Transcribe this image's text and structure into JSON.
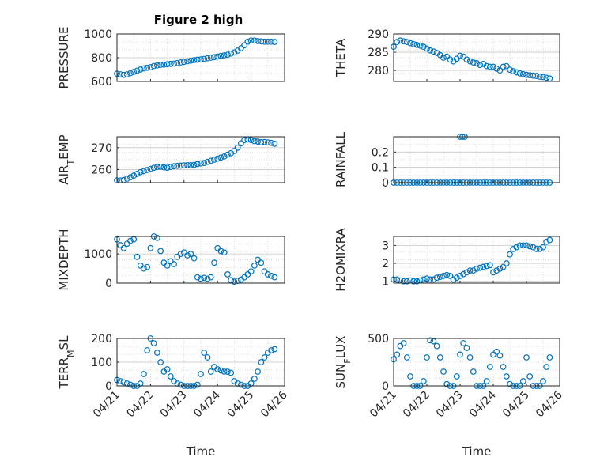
{
  "figure": {
    "title": "Figure 2 high",
    "accent": "#0072BD"
  },
  "chart_data": [
    {
      "type": "scatter",
      "ylabel": "PRESSURE",
      "ylim": [
        600,
        1000
      ],
      "yticks": [
        600,
        800,
        1000
      ],
      "xticks": [],
      "xlim": [
        0,
        5
      ],
      "xlabel": "",
      "grid": true,
      "x": [
        0.0,
        0.1,
        0.2,
        0.3,
        0.4,
        0.5,
        0.6,
        0.7,
        0.8,
        0.9,
        1.0,
        1.1,
        1.2,
        1.3,
        1.4,
        1.5,
        1.6,
        1.7,
        1.8,
        1.9,
        2.0,
        2.1,
        2.2,
        2.3,
        2.4,
        2.5,
        2.6,
        2.7,
        2.8,
        2.9,
        3.0,
        3.1,
        3.2,
        3.3,
        3.4,
        3.5,
        3.6,
        3.7,
        3.8,
        3.9,
        4.0,
        4.1,
        4.2,
        4.3,
        4.4,
        4.5,
        4.6,
        4.7
      ],
      "y": [
        665,
        660,
        655,
        660,
        670,
        680,
        690,
        700,
        710,
        715,
        720,
        730,
        735,
        740,
        742,
        745,
        748,
        750,
        755,
        760,
        765,
        770,
        775,
        780,
        783,
        786,
        790,
        795,
        800,
        805,
        810,
        815,
        820,
        825,
        835,
        845,
        860,
        880,
        905,
        935,
        945,
        945,
        940,
        938,
        935,
        935,
        935,
        933
      ]
    },
    {
      "type": "scatter",
      "ylabel": "THETA",
      "ylim": [
        277,
        290
      ],
      "yticks": [
        280,
        285,
        290
      ],
      "xticks": [],
      "xlim": [
        0,
        5
      ],
      "xlabel": "",
      "grid": true,
      "x": [
        0.0,
        0.1,
        0.2,
        0.3,
        0.4,
        0.5,
        0.6,
        0.7,
        0.8,
        0.9,
        1.0,
        1.1,
        1.2,
        1.3,
        1.4,
        1.5,
        1.6,
        1.7,
        1.8,
        1.9,
        2.0,
        2.1,
        2.2,
        2.3,
        2.4,
        2.5,
        2.6,
        2.7,
        2.8,
        2.9,
        3.0,
        3.1,
        3.2,
        3.3,
        3.4,
        3.5,
        3.6,
        3.7,
        3.8,
        3.9,
        4.0,
        4.1,
        4.2,
        4.3,
        4.4,
        4.5,
        4.6,
        4.7
      ],
      "y": [
        286.5,
        287.8,
        288.2,
        288.0,
        287.8,
        287.5,
        287.2,
        287.0,
        286.8,
        286.5,
        286.0,
        285.5,
        285.2,
        284.8,
        284.2,
        283.5,
        283.8,
        283.0,
        282.5,
        283.2,
        284.0,
        283.8,
        283.0,
        282.5,
        282.2,
        282.0,
        281.5,
        281.8,
        281.2,
        281.0,
        281.0,
        280.5,
        280.0,
        281.0,
        281.2,
        280.2,
        279.8,
        279.5,
        279.2,
        279.0,
        278.8,
        278.7,
        278.6,
        278.5,
        278.3,
        278.2,
        278.0,
        277.8
      ]
    },
    {
      "type": "scatter",
      "ylabel": "AIR_TEMP",
      "ylim": [
        254,
        275
      ],
      "yticks": [
        260,
        270
      ],
      "xticks": [],
      "xlim": [
        0,
        5
      ],
      "xlabel": "",
      "grid": true,
      "x": [
        0.0,
        0.1,
        0.2,
        0.3,
        0.4,
        0.5,
        0.6,
        0.7,
        0.8,
        0.9,
        1.0,
        1.1,
        1.2,
        1.3,
        1.4,
        1.5,
        1.6,
        1.7,
        1.8,
        1.9,
        2.0,
        2.1,
        2.2,
        2.3,
        2.4,
        2.5,
        2.6,
        2.7,
        2.8,
        2.9,
        3.0,
        3.1,
        3.2,
        3.3,
        3.4,
        3.5,
        3.6,
        3.7,
        3.8,
        3.9,
        4.0,
        4.1,
        4.2,
        4.3,
        4.4,
        4.5,
        4.6,
        4.7
      ],
      "y": [
        255.0,
        255.0,
        255.2,
        255.8,
        256.5,
        257.2,
        258.0,
        258.8,
        259.3,
        259.8,
        260.3,
        260.8,
        261.2,
        261.3,
        261.0,
        260.8,
        261.2,
        261.5,
        261.7,
        261.8,
        261.9,
        262.0,
        262.0,
        262.1,
        262.5,
        262.8,
        263.0,
        263.5,
        264.0,
        264.5,
        265.0,
        265.5,
        266.0,
        266.8,
        267.5,
        268.5,
        270.0,
        272.0,
        273.5,
        273.8,
        273.5,
        273.0,
        272.8,
        272.5,
        272.6,
        272.4,
        272.2,
        271.8
      ]
    },
    {
      "type": "scatter",
      "ylabel": "RAINFALL",
      "ylim": [
        0,
        0.3
      ],
      "yticks": [
        0,
        0.1,
        0.2
      ],
      "xticks": [],
      "xlim": [
        0,
        5
      ],
      "xlabel": "",
      "grid": true,
      "x": [
        0.0,
        0.1,
        0.2,
        0.3,
        0.4,
        0.5,
        0.6,
        0.7,
        0.8,
        0.9,
        1.0,
        1.1,
        1.2,
        1.3,
        1.4,
        1.5,
        1.6,
        1.7,
        1.8,
        1.9,
        2.0,
        2.1,
        2.2,
        2.3,
        2.4,
        2.5,
        2.6,
        2.7,
        2.8,
        2.9,
        3.0,
        3.1,
        3.2,
        3.3,
        3.4,
        3.5,
        3.6,
        3.7,
        3.8,
        3.9,
        4.0,
        4.1,
        4.2,
        4.3,
        4.4,
        4.5,
        4.6,
        4.7,
        2.0,
        2.07,
        2.14
      ],
      "y": [
        0,
        0,
        0,
        0,
        0,
        0,
        0,
        0,
        0,
        0,
        0,
        0,
        0,
        0,
        0,
        0,
        0,
        0,
        0,
        0,
        0,
        0,
        0,
        0,
        0,
        0,
        0,
        0,
        0,
        0,
        0,
        0,
        0,
        0,
        0,
        0,
        0,
        0,
        0,
        0,
        0,
        0,
        0,
        0,
        0,
        0,
        0,
        0,
        0.3,
        0.3,
        0.3
      ]
    },
    {
      "type": "scatter",
      "ylabel": "MIXDEPTH",
      "ylim": [
        0,
        1600
      ],
      "yticks": [
        0,
        1000
      ],
      "xticks": [],
      "xlim": [
        0,
        5
      ],
      "xlabel": "",
      "grid": true,
      "x": [
        0.0,
        0.1,
        0.2,
        0.3,
        0.4,
        0.5,
        0.6,
        0.7,
        0.8,
        0.9,
        1.0,
        1.1,
        1.2,
        1.3,
        1.4,
        1.5,
        1.6,
        1.7,
        1.8,
        1.9,
        2.0,
        2.1,
        2.2,
        2.3,
        2.4,
        2.5,
        2.6,
        2.7,
        2.8,
        2.9,
        3.0,
        3.1,
        3.2,
        3.3,
        3.4,
        3.5,
        3.6,
        3.7,
        3.8,
        3.9,
        4.0,
        4.1,
        4.2,
        4.3,
        4.4,
        4.5,
        4.6,
        4.7
      ],
      "y": [
        1500,
        1300,
        1200,
        1350,
        1450,
        1500,
        900,
        600,
        500,
        550,
        1200,
        1600,
        1550,
        1100,
        700,
        600,
        750,
        650,
        900,
        1000,
        1050,
        950,
        1000,
        850,
        200,
        150,
        180,
        150,
        200,
        700,
        1200,
        1100,
        1050,
        300,
        100,
        50,
        80,
        120,
        200,
        300,
        400,
        600,
        800,
        700,
        400,
        300,
        250,
        200
      ]
    },
    {
      "type": "scatter",
      "ylabel": "H2OMIXRA",
      "ylim": [
        0.9,
        3.5
      ],
      "yticks": [
        1,
        2,
        3
      ],
      "xticks": [],
      "xlim": [
        0,
        5
      ],
      "xlabel": "",
      "grid": true,
      "x": [
        0.0,
        0.1,
        0.2,
        0.3,
        0.4,
        0.5,
        0.6,
        0.7,
        0.8,
        0.9,
        1.0,
        1.1,
        1.2,
        1.3,
        1.4,
        1.5,
        1.6,
        1.7,
        1.8,
        1.9,
        2.0,
        2.1,
        2.2,
        2.3,
        2.4,
        2.5,
        2.6,
        2.7,
        2.8,
        2.9,
        3.0,
        3.1,
        3.2,
        3.3,
        3.4,
        3.5,
        3.6,
        3.7,
        3.8,
        3.9,
        4.0,
        4.1,
        4.2,
        4.3,
        4.4,
        4.5,
        4.6,
        4.7
      ],
      "y": [
        1.1,
        1.1,
        1.05,
        1.0,
        1.0,
        1.05,
        1.0,
        1.0,
        1.05,
        1.1,
        1.15,
        1.1,
        1.1,
        1.2,
        1.25,
        1.3,
        1.35,
        1.3,
        1.1,
        1.2,
        1.3,
        1.4,
        1.5,
        1.6,
        1.6,
        1.7,
        1.75,
        1.8,
        1.85,
        1.9,
        1.5,
        1.6,
        1.7,
        1.8,
        2.0,
        2.5,
        2.8,
        2.9,
        3.0,
        3.0,
        3.0,
        2.95,
        2.9,
        2.8,
        2.8,
        2.9,
        3.2,
        3.3
      ]
    },
    {
      "type": "scatter",
      "ylabel": "TERR_MSL",
      "ylim": [
        0,
        200
      ],
      "yticks": [
        0,
        100,
        200
      ],
      "xticks": [
        "04/21",
        "04/22",
        "04/23",
        "04/24",
        "04/25",
        "04/26"
      ],
      "xlim": [
        0,
        5
      ],
      "xlabel": "Time",
      "grid": true,
      "x": [
        0.0,
        0.1,
        0.2,
        0.3,
        0.4,
        0.5,
        0.6,
        0.7,
        0.8,
        0.9,
        1.0,
        1.1,
        1.2,
        1.3,
        1.4,
        1.5,
        1.6,
        1.7,
        1.8,
        1.9,
        2.0,
        2.1,
        2.2,
        2.3,
        2.4,
        2.5,
        2.6,
        2.7,
        2.8,
        2.9,
        3.0,
        3.1,
        3.2,
        3.3,
        3.4,
        3.5,
        3.6,
        3.7,
        3.8,
        3.9,
        4.0,
        4.1,
        4.2,
        4.3,
        4.4,
        4.5,
        4.6,
        4.7
      ],
      "y": [
        25,
        20,
        15,
        10,
        5,
        0,
        0,
        10,
        50,
        150,
        200,
        180,
        140,
        100,
        60,
        70,
        40,
        20,
        10,
        5,
        0,
        0,
        0,
        0,
        5,
        50,
        140,
        120,
        60,
        80,
        70,
        65,
        60,
        60,
        55,
        20,
        10,
        5,
        0,
        0,
        10,
        30,
        60,
        100,
        120,
        140,
        150,
        155
      ]
    },
    {
      "type": "scatter",
      "ylabel": "SUN_FLUX",
      "ylim": [
        0,
        500
      ],
      "yticks": [
        0,
        500
      ],
      "xticks": [
        "04/21",
        "04/22",
        "04/23",
        "04/24",
        "04/25",
        "04/26"
      ],
      "xlim": [
        0,
        5
      ],
      "xlabel": "Time",
      "grid": true,
      "x": [
        0.0,
        0.1,
        0.2,
        0.3,
        0.4,
        0.5,
        0.6,
        0.7,
        0.8,
        0.9,
        1.0,
        1.1,
        1.2,
        1.3,
        1.4,
        1.5,
        1.6,
        1.7,
        1.8,
        1.9,
        2.0,
        2.1,
        2.2,
        2.3,
        2.4,
        2.5,
        2.6,
        2.7,
        2.8,
        2.9,
        3.0,
        3.1,
        3.2,
        3.3,
        3.4,
        3.5,
        3.6,
        3.7,
        3.8,
        3.9,
        4.0,
        4.1,
        4.2,
        4.3,
        4.4,
        4.5,
        4.6,
        4.7
      ],
      "y": [
        280,
        330,
        420,
        450,
        300,
        100,
        0,
        0,
        0,
        50,
        300,
        480,
        470,
        420,
        300,
        150,
        20,
        0,
        0,
        100,
        330,
        450,
        400,
        300,
        150,
        0,
        0,
        0,
        50,
        200,
        330,
        360,
        320,
        200,
        100,
        20,
        0,
        0,
        0,
        50,
        300,
        100,
        0,
        0,
        0,
        50,
        200,
        300
      ]
    }
  ]
}
